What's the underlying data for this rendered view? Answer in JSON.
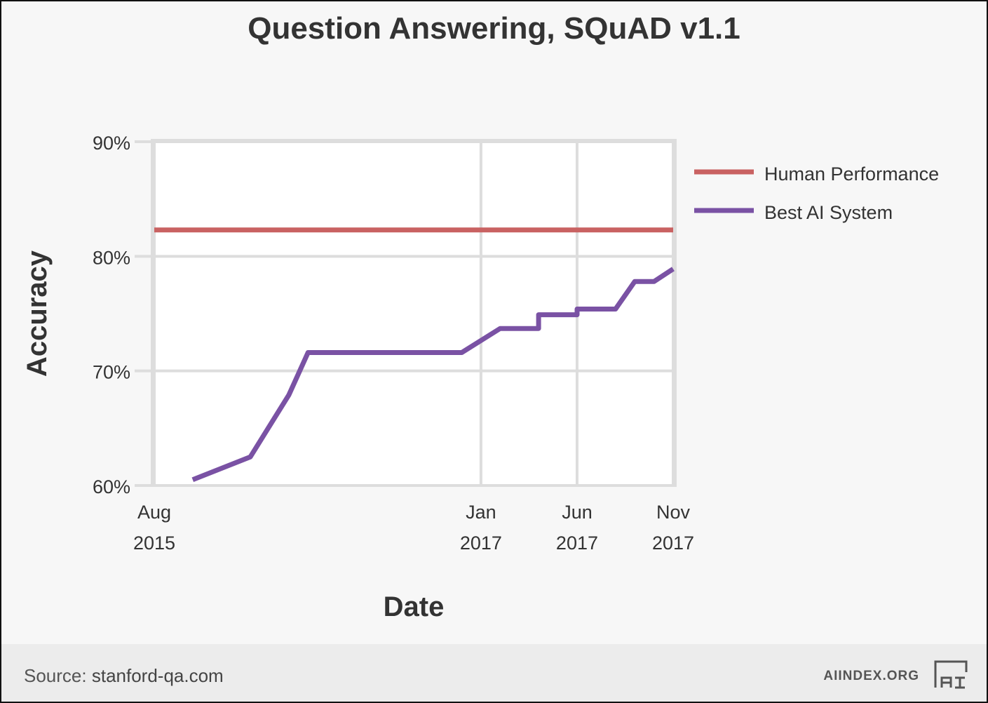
{
  "chart_data": {
    "type": "line",
    "title": "Question Answering, SQuAD v1.1",
    "xlabel": "Date",
    "ylabel": "Accuracy",
    "ylim": [
      60,
      90
    ],
    "xlim": [
      "2015-08",
      "2017-11"
    ],
    "yticks": [
      "60%",
      "70%",
      "80%",
      "90%"
    ],
    "y_tick_values": [
      60,
      70,
      80,
      90
    ],
    "xticks": [
      {
        "month": "Aug",
        "year": "2015",
        "date": "2015-08"
      },
      {
        "month": "Jan",
        "year": "2017",
        "date": "2017-01"
      },
      {
        "month": "Jun",
        "year": "2017",
        "date": "2017-06"
      },
      {
        "month": "Nov",
        "year": "2017",
        "date": "2017-11"
      }
    ],
    "grid": true,
    "legend_position": "right",
    "series": [
      {
        "name": "Human Performance",
        "color": "#c96262",
        "x": [
          "2015-08",
          "2017-11"
        ],
        "values": [
          82.3,
          82.3
        ]
      },
      {
        "name": "Best AI System",
        "color": "#7a52a4",
        "x": [
          "2015-10",
          "2016-01",
          "2016-03",
          "2016-04",
          "2016-12",
          "2017-02",
          "2017-04",
          "2017-04",
          "2017-06",
          "2017-06",
          "2017-08",
          "2017-09",
          "2017-10",
          "2017-11",
          "2017-11"
        ],
        "values": [
          60.5,
          62.5,
          67.9,
          71.6,
          71.6,
          73.7,
          73.7,
          74.9,
          74.9,
          75.4,
          75.4,
          77.8,
          77.8,
          78.9,
          78.9
        ]
      }
    ]
  },
  "footer": {
    "source_label": "Source:",
    "source_value": "stanford-qa.com",
    "brand": "AIINDEX.ORG",
    "logo_icon": "ai-index-logo-icon"
  }
}
